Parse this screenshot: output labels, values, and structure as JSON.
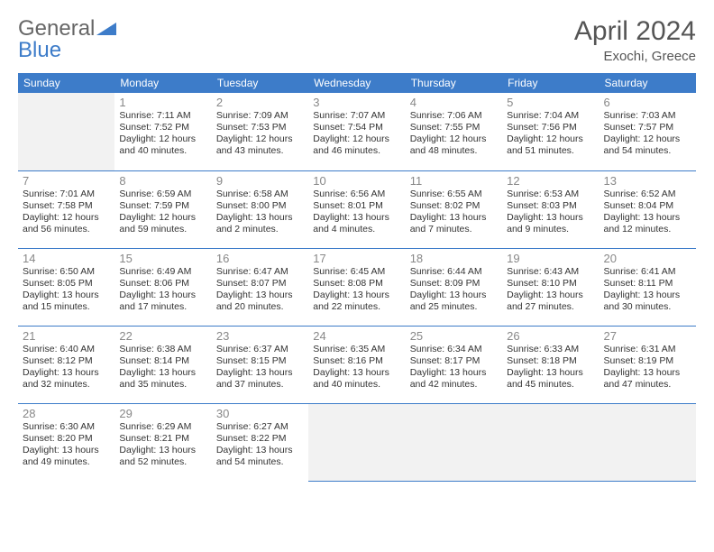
{
  "brand": {
    "part1": "General",
    "part2": "Blue"
  },
  "title": "April 2024",
  "location": "Exochi, Greece",
  "colors": {
    "header_bg": "#3d7cc9",
    "text": "#333333",
    "muted": "#888888",
    "empty_bg": "#f2f2f2"
  },
  "day_headers": [
    "Sunday",
    "Monday",
    "Tuesday",
    "Wednesday",
    "Thursday",
    "Friday",
    "Saturday"
  ],
  "weeks": [
    [
      null,
      {
        "n": "1",
        "sr": "Sunrise: 7:11 AM",
        "ss": "Sunset: 7:52 PM",
        "d1": "Daylight: 12 hours",
        "d2": "and 40 minutes."
      },
      {
        "n": "2",
        "sr": "Sunrise: 7:09 AM",
        "ss": "Sunset: 7:53 PM",
        "d1": "Daylight: 12 hours",
        "d2": "and 43 minutes."
      },
      {
        "n": "3",
        "sr": "Sunrise: 7:07 AM",
        "ss": "Sunset: 7:54 PM",
        "d1": "Daylight: 12 hours",
        "d2": "and 46 minutes."
      },
      {
        "n": "4",
        "sr": "Sunrise: 7:06 AM",
        "ss": "Sunset: 7:55 PM",
        "d1": "Daylight: 12 hours",
        "d2": "and 48 minutes."
      },
      {
        "n": "5",
        "sr": "Sunrise: 7:04 AM",
        "ss": "Sunset: 7:56 PM",
        "d1": "Daylight: 12 hours",
        "d2": "and 51 minutes."
      },
      {
        "n": "6",
        "sr": "Sunrise: 7:03 AM",
        "ss": "Sunset: 7:57 PM",
        "d1": "Daylight: 12 hours",
        "d2": "and 54 minutes."
      }
    ],
    [
      {
        "n": "7",
        "sr": "Sunrise: 7:01 AM",
        "ss": "Sunset: 7:58 PM",
        "d1": "Daylight: 12 hours",
        "d2": "and 56 minutes."
      },
      {
        "n": "8",
        "sr": "Sunrise: 6:59 AM",
        "ss": "Sunset: 7:59 PM",
        "d1": "Daylight: 12 hours",
        "d2": "and 59 minutes."
      },
      {
        "n": "9",
        "sr": "Sunrise: 6:58 AM",
        "ss": "Sunset: 8:00 PM",
        "d1": "Daylight: 13 hours",
        "d2": "and 2 minutes."
      },
      {
        "n": "10",
        "sr": "Sunrise: 6:56 AM",
        "ss": "Sunset: 8:01 PM",
        "d1": "Daylight: 13 hours",
        "d2": "and 4 minutes."
      },
      {
        "n": "11",
        "sr": "Sunrise: 6:55 AM",
        "ss": "Sunset: 8:02 PM",
        "d1": "Daylight: 13 hours",
        "d2": "and 7 minutes."
      },
      {
        "n": "12",
        "sr": "Sunrise: 6:53 AM",
        "ss": "Sunset: 8:03 PM",
        "d1": "Daylight: 13 hours",
        "d2": "and 9 minutes."
      },
      {
        "n": "13",
        "sr": "Sunrise: 6:52 AM",
        "ss": "Sunset: 8:04 PM",
        "d1": "Daylight: 13 hours",
        "d2": "and 12 minutes."
      }
    ],
    [
      {
        "n": "14",
        "sr": "Sunrise: 6:50 AM",
        "ss": "Sunset: 8:05 PM",
        "d1": "Daylight: 13 hours",
        "d2": "and 15 minutes."
      },
      {
        "n": "15",
        "sr": "Sunrise: 6:49 AM",
        "ss": "Sunset: 8:06 PM",
        "d1": "Daylight: 13 hours",
        "d2": "and 17 minutes."
      },
      {
        "n": "16",
        "sr": "Sunrise: 6:47 AM",
        "ss": "Sunset: 8:07 PM",
        "d1": "Daylight: 13 hours",
        "d2": "and 20 minutes."
      },
      {
        "n": "17",
        "sr": "Sunrise: 6:45 AM",
        "ss": "Sunset: 8:08 PM",
        "d1": "Daylight: 13 hours",
        "d2": "and 22 minutes."
      },
      {
        "n": "18",
        "sr": "Sunrise: 6:44 AM",
        "ss": "Sunset: 8:09 PM",
        "d1": "Daylight: 13 hours",
        "d2": "and 25 minutes."
      },
      {
        "n": "19",
        "sr": "Sunrise: 6:43 AM",
        "ss": "Sunset: 8:10 PM",
        "d1": "Daylight: 13 hours",
        "d2": "and 27 minutes."
      },
      {
        "n": "20",
        "sr": "Sunrise: 6:41 AM",
        "ss": "Sunset: 8:11 PM",
        "d1": "Daylight: 13 hours",
        "d2": "and 30 minutes."
      }
    ],
    [
      {
        "n": "21",
        "sr": "Sunrise: 6:40 AM",
        "ss": "Sunset: 8:12 PM",
        "d1": "Daylight: 13 hours",
        "d2": "and 32 minutes."
      },
      {
        "n": "22",
        "sr": "Sunrise: 6:38 AM",
        "ss": "Sunset: 8:14 PM",
        "d1": "Daylight: 13 hours",
        "d2": "and 35 minutes."
      },
      {
        "n": "23",
        "sr": "Sunrise: 6:37 AM",
        "ss": "Sunset: 8:15 PM",
        "d1": "Daylight: 13 hours",
        "d2": "and 37 minutes."
      },
      {
        "n": "24",
        "sr": "Sunrise: 6:35 AM",
        "ss": "Sunset: 8:16 PM",
        "d1": "Daylight: 13 hours",
        "d2": "and 40 minutes."
      },
      {
        "n": "25",
        "sr": "Sunrise: 6:34 AM",
        "ss": "Sunset: 8:17 PM",
        "d1": "Daylight: 13 hours",
        "d2": "and 42 minutes."
      },
      {
        "n": "26",
        "sr": "Sunrise: 6:33 AM",
        "ss": "Sunset: 8:18 PM",
        "d1": "Daylight: 13 hours",
        "d2": "and 45 minutes."
      },
      {
        "n": "27",
        "sr": "Sunrise: 6:31 AM",
        "ss": "Sunset: 8:19 PM",
        "d1": "Daylight: 13 hours",
        "d2": "and 47 minutes."
      }
    ],
    [
      {
        "n": "28",
        "sr": "Sunrise: 6:30 AM",
        "ss": "Sunset: 8:20 PM",
        "d1": "Daylight: 13 hours",
        "d2": "and 49 minutes."
      },
      {
        "n": "29",
        "sr": "Sunrise: 6:29 AM",
        "ss": "Sunset: 8:21 PM",
        "d1": "Daylight: 13 hours",
        "d2": "and 52 minutes."
      },
      {
        "n": "30",
        "sr": "Sunrise: 6:27 AM",
        "ss": "Sunset: 8:22 PM",
        "d1": "Daylight: 13 hours",
        "d2": "and 54 minutes."
      },
      null,
      null,
      null,
      null
    ]
  ]
}
